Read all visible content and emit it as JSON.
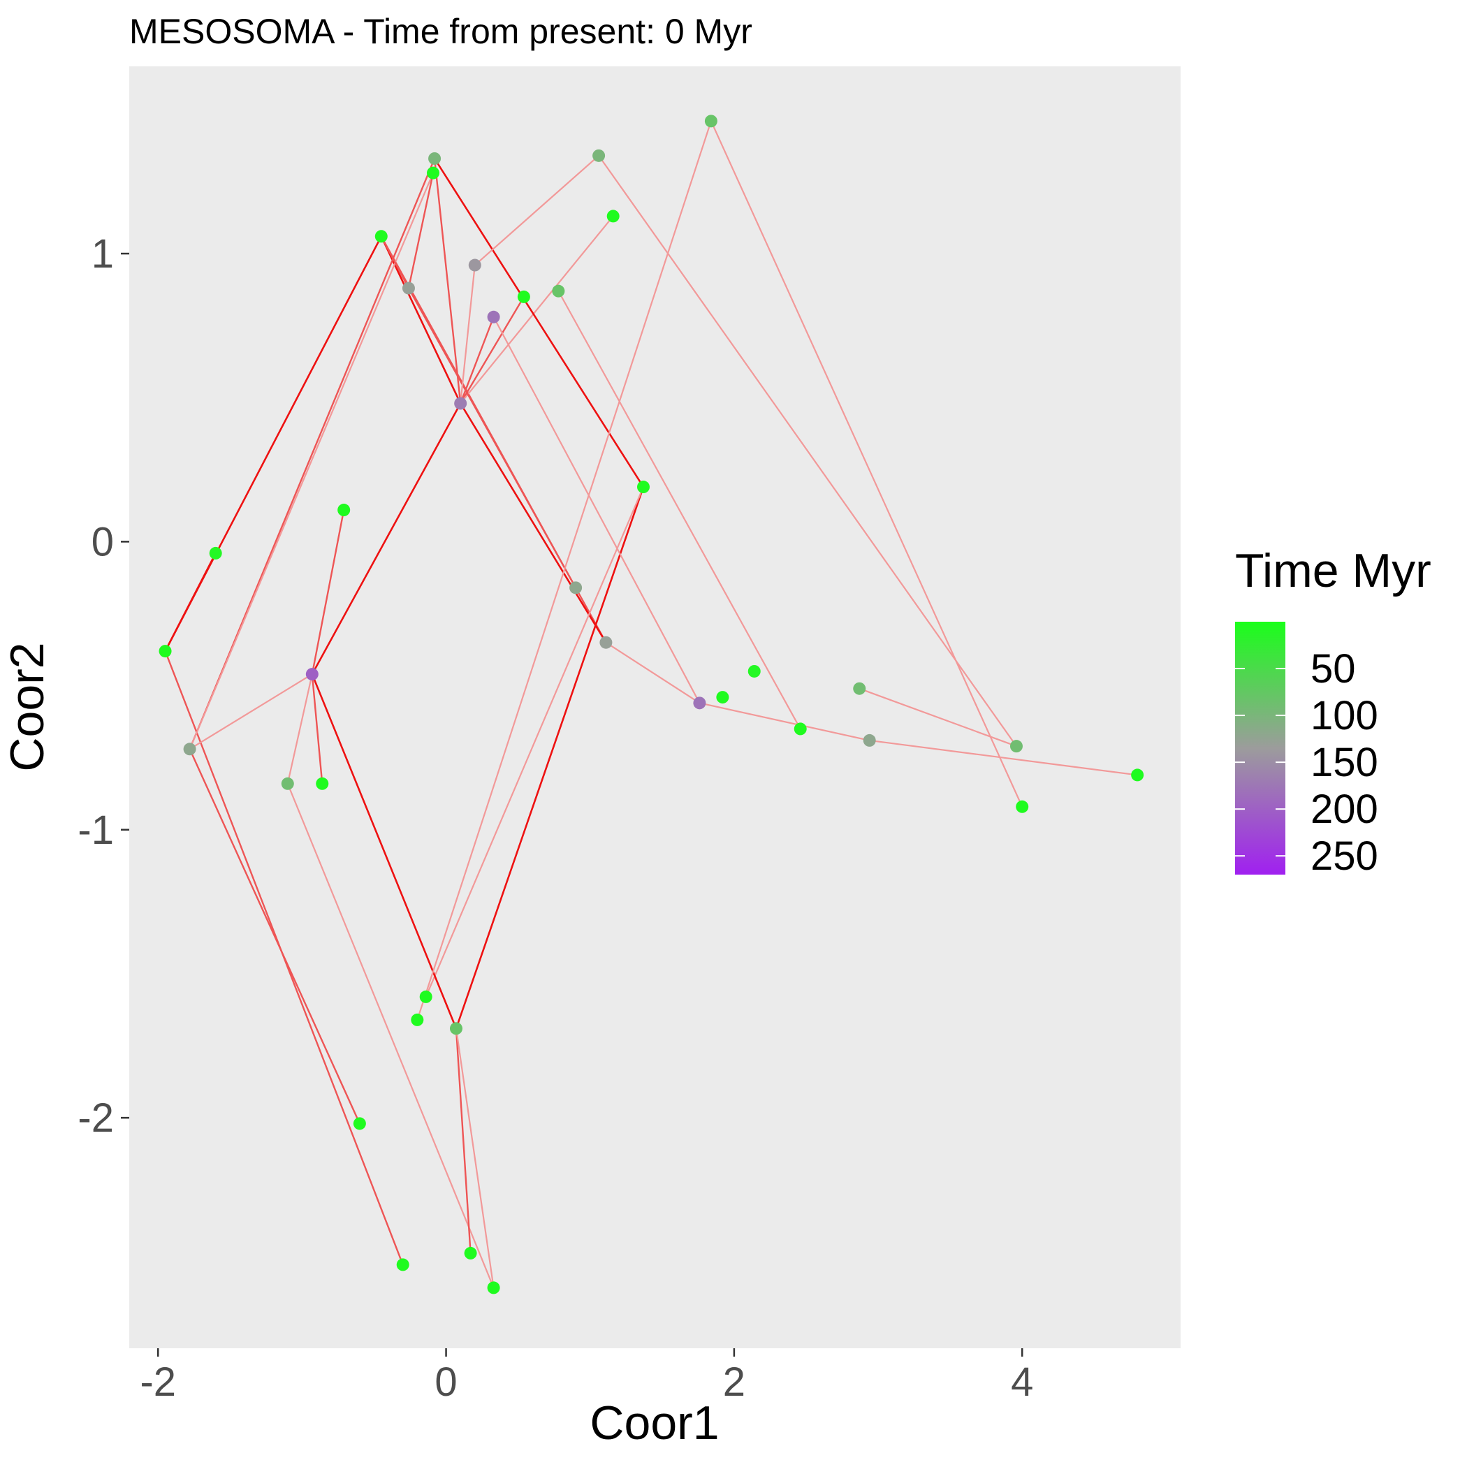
{
  "chart_data": {
    "type": "scatter",
    "title": "MESOSOMA - Time from present: 0 Myr",
    "xlabel": "Coor1",
    "ylabel": "Coor2",
    "xlim": [
      -2.2,
      5.1
    ],
    "ylim": [
      -2.8,
      1.65
    ],
    "x_ticks": [
      -2,
      0,
      2,
      4
    ],
    "x_tick_labels": [
      "-2",
      "0",
      "2",
      "4"
    ],
    "y_ticks": [
      -2,
      -1,
      0,
      1
    ],
    "y_tick_labels": [
      "-2",
      "-1",
      "0",
      "1"
    ],
    "panel_background": "#ebebeb",
    "grid": false,
    "legend": {
      "title": "Time Myr",
      "placement": "right",
      "scale": [
        0,
        270
      ],
      "breaks": [
        50,
        100,
        150,
        200,
        250
      ],
      "break_labels": [
        "50",
        "100",
        "150",
        "200",
        "250"
      ],
      "color_low": "#1aff1a",
      "color_mid": "#9c9c9c",
      "color_high": "#a020f0"
    },
    "colors": {
      "edge_strong": "#ee1111",
      "edge_medium": "#ee5555",
      "edge_faint": "#f29999"
    },
    "points": [
      {
        "x": -1.95,
        "y": -0.38,
        "t": 5
      },
      {
        "x": -1.6,
        "y": -0.04,
        "t": 10
      },
      {
        "x": -1.78,
        "y": -0.72,
        "t": 120
      },
      {
        "x": -0.45,
        "y": 1.06,
        "t": 5
      },
      {
        "x": -0.26,
        "y": 0.88,
        "t": 130
      },
      {
        "x": -0.08,
        "y": 1.33,
        "t": 100
      },
      {
        "x": -0.09,
        "y": 1.28,
        "t": 5
      },
      {
        "x": 0.1,
        "y": 0.48,
        "t": 170
      },
      {
        "x": 0.2,
        "y": 0.96,
        "t": 140
      },
      {
        "x": 0.33,
        "y": 0.78,
        "t": 180
      },
      {
        "x": 0.54,
        "y": 0.85,
        "t": 5
      },
      {
        "x": 0.78,
        "y": 0.87,
        "t": 80
      },
      {
        "x": 1.06,
        "y": 1.34,
        "t": 100
      },
      {
        "x": 1.16,
        "y": 1.13,
        "t": 5
      },
      {
        "x": 1.37,
        "y": 0.19,
        "t": 5
      },
      {
        "x": 0.9,
        "y": -0.16,
        "t": 120
      },
      {
        "x": 1.11,
        "y": -0.35,
        "t": 130
      },
      {
        "x": -0.93,
        "y": -0.46,
        "t": 200
      },
      {
        "x": -0.71,
        "y": 0.11,
        "t": 5
      },
      {
        "x": -1.1,
        "y": -0.84,
        "t": 90
      },
      {
        "x": -0.86,
        "y": -0.84,
        "t": 5
      },
      {
        "x": -0.6,
        "y": -2.02,
        "t": 5
      },
      {
        "x": -0.3,
        "y": -2.51,
        "t": 5
      },
      {
        "x": 0.07,
        "y": -1.69,
        "t": 80
      },
      {
        "x": -0.14,
        "y": -1.58,
        "t": 5
      },
      {
        "x": -0.2,
        "y": -1.66,
        "t": 5
      },
      {
        "x": 0.17,
        "y": -2.47,
        "t": 5
      },
      {
        "x": 0.33,
        "y": -2.59,
        "t": 5
      },
      {
        "x": 1.84,
        "y": 1.46,
        "t": 80
      },
      {
        "x": 1.76,
        "y": -0.56,
        "t": 180
      },
      {
        "x": 1.92,
        "y": -0.54,
        "t": 5
      },
      {
        "x": 2.14,
        "y": -0.45,
        "t": 10
      },
      {
        "x": 2.46,
        "y": -0.65,
        "t": 5
      },
      {
        "x": 2.87,
        "y": -0.51,
        "t": 90
      },
      {
        "x": 2.94,
        "y": -0.69,
        "t": 120
      },
      {
        "x": 3.96,
        "y": -0.71,
        "t": 90
      },
      {
        "x": 4.0,
        "y": -0.92,
        "t": 5
      },
      {
        "x": 4.8,
        "y": -0.81,
        "t": 5
      }
    ],
    "edges": [
      {
        "from": 0,
        "to": 3,
        "style": "strong"
      },
      {
        "from": 0,
        "to": 1,
        "style": "strong"
      },
      {
        "from": 0,
        "to": 22,
        "style": "medium"
      },
      {
        "from": 3,
        "to": 7,
        "style": "strong"
      },
      {
        "from": 3,
        "to": 16,
        "style": "medium"
      },
      {
        "from": 7,
        "to": 17,
        "style": "strong"
      },
      {
        "from": 7,
        "to": 16,
        "style": "strong"
      },
      {
        "from": 7,
        "to": 5,
        "style": "medium"
      },
      {
        "from": 7,
        "to": 9,
        "style": "medium"
      },
      {
        "from": 7,
        "to": 10,
        "style": "medium"
      },
      {
        "from": 7,
        "to": 13,
        "style": "faint"
      },
      {
        "from": 5,
        "to": 14,
        "style": "strong"
      },
      {
        "from": 5,
        "to": 2,
        "style": "medium"
      },
      {
        "from": 14,
        "to": 23,
        "style": "strong"
      },
      {
        "from": 14,
        "to": 24,
        "style": "faint"
      },
      {
        "from": 17,
        "to": 23,
        "style": "strong"
      },
      {
        "from": 17,
        "to": 18,
        "style": "medium"
      },
      {
        "from": 17,
        "to": 19,
        "style": "faint"
      },
      {
        "from": 17,
        "to": 20,
        "style": "medium"
      },
      {
        "from": 17,
        "to": 2,
        "style": "faint"
      },
      {
        "from": 2,
        "to": 21,
        "style": "medium"
      },
      {
        "from": 2,
        "to": 6,
        "style": "faint"
      },
      {
        "from": 19,
        "to": 27,
        "style": "faint"
      },
      {
        "from": 23,
        "to": 26,
        "style": "medium"
      },
      {
        "from": 23,
        "to": 27,
        "style": "faint"
      },
      {
        "from": 4,
        "to": 3,
        "style": "medium"
      },
      {
        "from": 4,
        "to": 6,
        "style": "medium"
      },
      {
        "from": 4,
        "to": 15,
        "style": "medium"
      },
      {
        "from": 8,
        "to": 7,
        "style": "faint"
      },
      {
        "from": 8,
        "to": 12,
        "style": "faint"
      },
      {
        "from": 12,
        "to": 35,
        "style": "faint"
      },
      {
        "from": 9,
        "to": 29,
        "style": "faint"
      },
      {
        "from": 11,
        "to": 32,
        "style": "faint"
      },
      {
        "from": 16,
        "to": 29,
        "style": "faint"
      },
      {
        "from": 29,
        "to": 34,
        "style": "faint"
      },
      {
        "from": 34,
        "to": 37,
        "style": "faint"
      },
      {
        "from": 28,
        "to": 25,
        "style": "faint"
      },
      {
        "from": 28,
        "to": 36,
        "style": "faint"
      },
      {
        "from": 33,
        "to": 35,
        "style": "faint"
      }
    ]
  }
}
